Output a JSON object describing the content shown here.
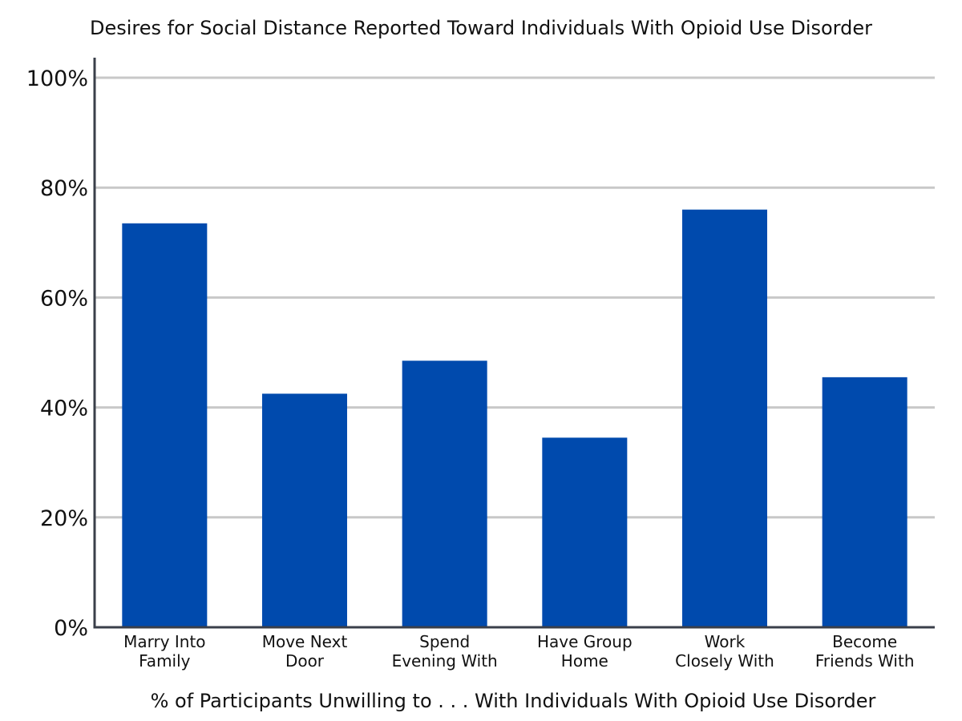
{
  "chart_data": {
    "type": "bar",
    "title": "Desires for Social Distance Reported Toward Individuals With Opioid Use Disorder",
    "xlabel": "% of Participants Unwilling to . . . With Individuals With Opioid Use Disorder",
    "ylabel": "",
    "categories": [
      [
        "Marry Into",
        "Family"
      ],
      [
        "Move Next",
        "Door"
      ],
      [
        "Spend",
        "Evening With"
      ],
      [
        "Have Group",
        "Home"
      ],
      [
        "Work",
        "Closely With"
      ],
      [
        "Become",
        "Friends With"
      ]
    ],
    "values": [
      73.5,
      42.5,
      48.5,
      34.5,
      76,
      45.5
    ],
    "ylim": [
      0,
      100
    ],
    "yticks": [
      0,
      20,
      40,
      60,
      80,
      100
    ],
    "ytick_labels": [
      "0%",
      "20%",
      "40%",
      "60%",
      "80%",
      "100%"
    ],
    "grid": true,
    "legend": "none",
    "colors": {
      "bar": "#004AAD",
      "grid": "#C8C8C8",
      "axis": "#3A3F4A"
    }
  }
}
